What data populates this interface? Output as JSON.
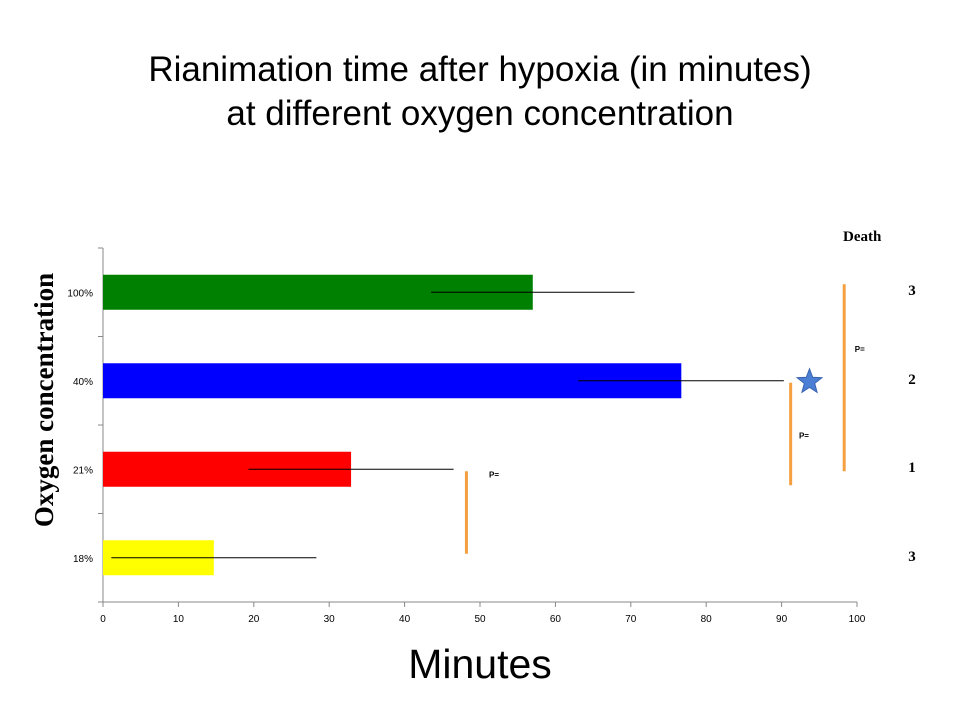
{
  "title_line1": "Rianimation time after hypoxia (in minutes)",
  "title_line2": "at different oxygen  concentration",
  "chart_data": {
    "type": "bar",
    "orientation": "horizontal",
    "categories": [
      "18%",
      "21%",
      "40%",
      "100%"
    ],
    "values": [
      14.7,
      32.9,
      76.7,
      57.0
    ],
    "error_low": [
      1.1,
      19.3,
      63.0,
      43.5
    ],
    "error_high": [
      28.3,
      46.5,
      90.3,
      70.5
    ],
    "colors": [
      "#ffff00",
      "#ff0000",
      "#0000ff",
      "#008000"
    ],
    "xlabel": "Minutes",
    "ylabel": "Oxygen concentration",
    "xlim": [
      0,
      100
    ],
    "xticks": [
      "0",
      "10",
      "20",
      "30",
      "40",
      "50",
      "60",
      "70",
      "80",
      "90",
      "100"
    ],
    "grid": false,
    "significance_labels": [
      "P=",
      "P=",
      "P="
    ],
    "star_color": "#4a7fd4",
    "bracket_color": "#f4a040"
  },
  "death": {
    "header": "Death",
    "values": [
      "3",
      "1",
      "2",
      "3"
    ]
  }
}
